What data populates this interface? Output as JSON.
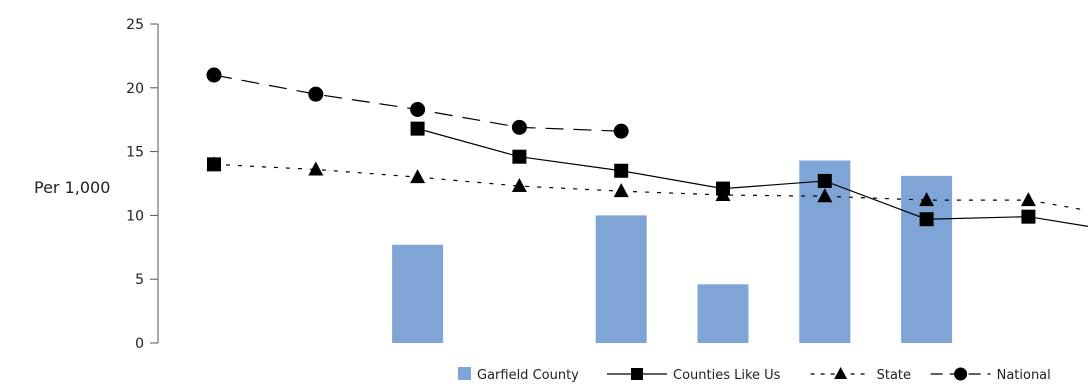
{
  "chart_data": {
    "type": "bar",
    "ylabel": "Per 1,000",
    "ylim": [
      0,
      25
    ],
    "yticks": [
      0,
      5,
      10,
      15,
      20,
      25
    ],
    "categories": [
      "",
      "",
      "",
      "",
      "",
      "",
      "",
      "",
      "",
      ""
    ],
    "series": [
      {
        "name": "Garfield County",
        "type": "bar",
        "color": "#7fa5d6",
        "values": [
          null,
          null,
          7.7,
          null,
          10.0,
          4.6,
          14.3,
          13.1,
          null,
          null
        ]
      },
      {
        "name": "Counties Like Us",
        "type": "line",
        "line_style": "solid",
        "marker": "square",
        "color": "#000000",
        "values": [
          14.0,
          null,
          16.8,
          14.6,
          13.5,
          12.1,
          12.7,
          9.7,
          9.9,
          8.6
        ]
      },
      {
        "name": "State",
        "type": "line",
        "line_style": "dotted",
        "marker": "triangle",
        "color": "#000000",
        "values": [
          14.0,
          13.6,
          13.0,
          12.3,
          11.9,
          11.6,
          11.5,
          11.2,
          11.2,
          9.8
        ]
      },
      {
        "name": "National",
        "type": "line",
        "line_style": "dashed",
        "marker": "circle",
        "color": "#000000",
        "values": [
          21.0,
          19.5,
          18.3,
          16.9,
          16.6,
          null,
          null,
          null,
          null,
          null
        ]
      }
    ],
    "legend_position": "bottom-right",
    "grid": false
  }
}
